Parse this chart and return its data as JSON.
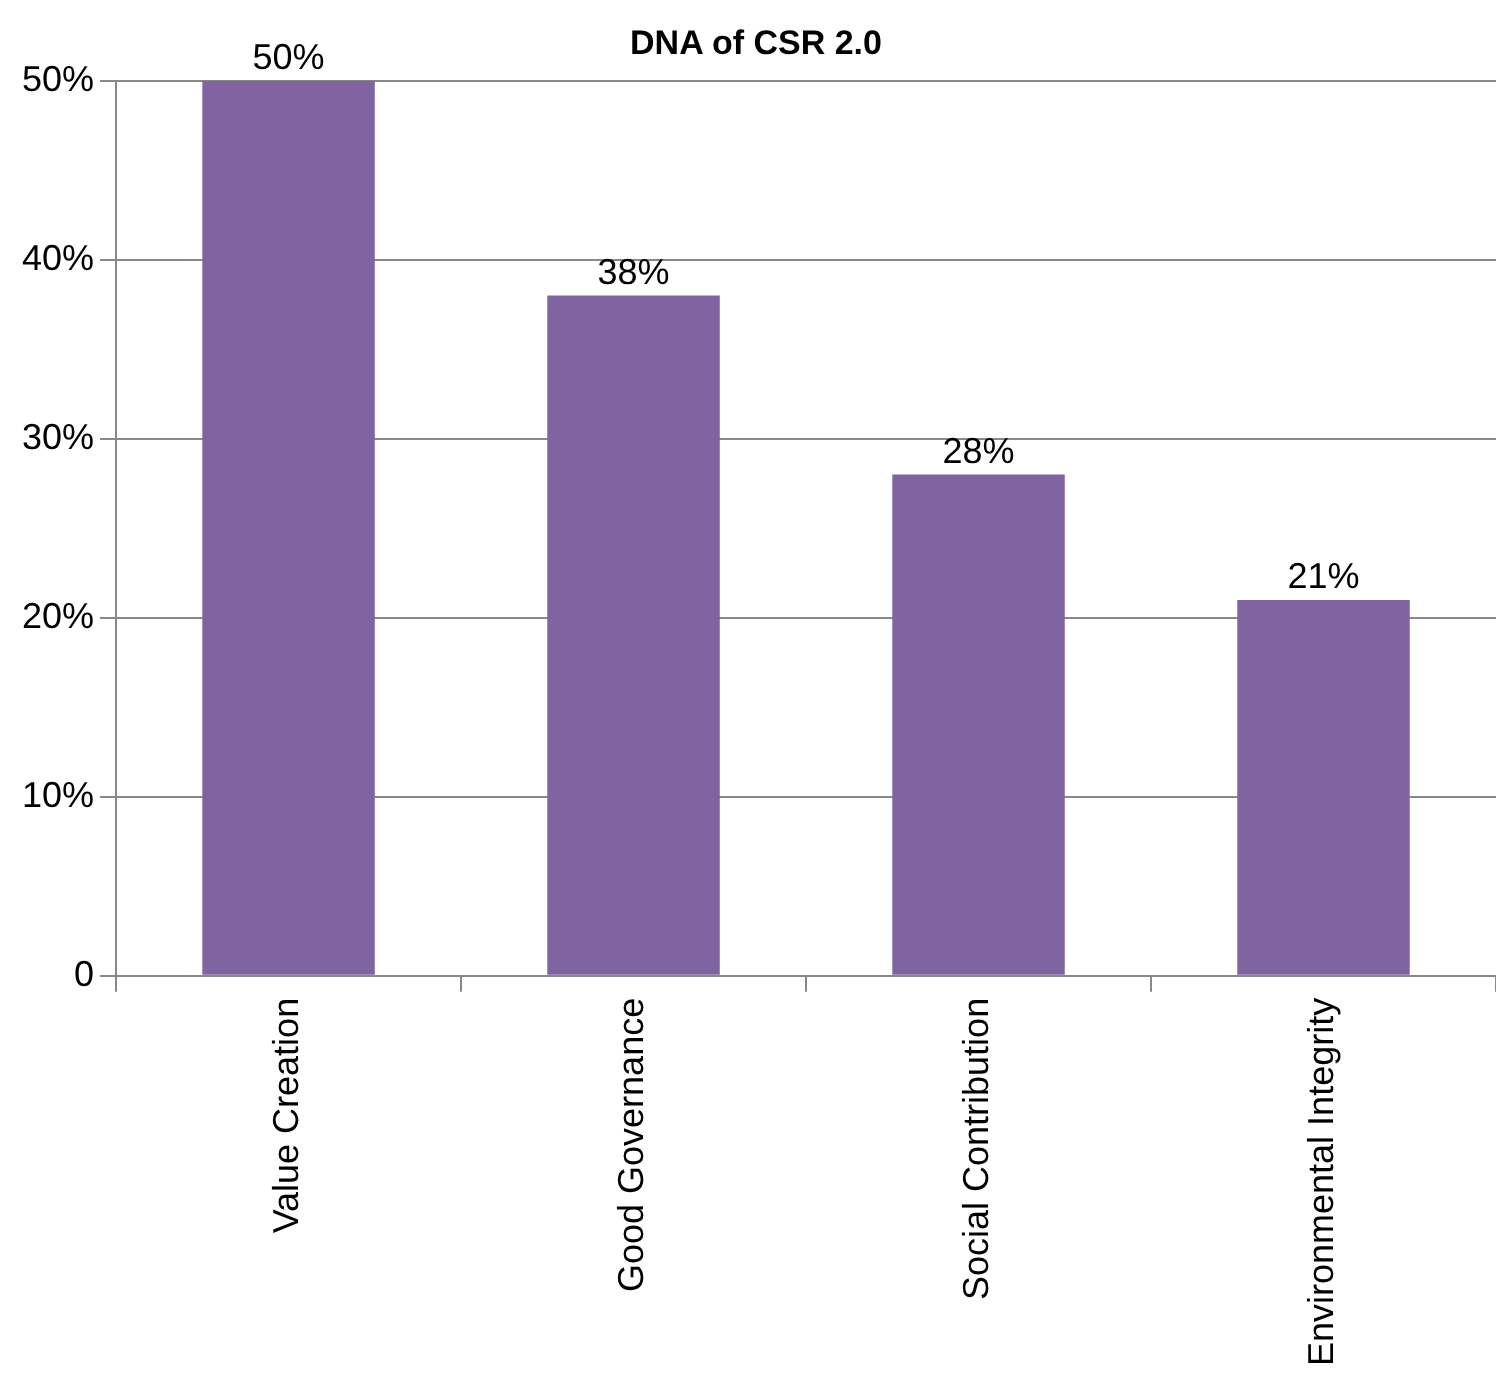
{
  "chart_data": {
    "type": "bar",
    "title": "DNA of CSR 2.0",
    "categories": [
      "Value Creation",
      "Good Governance",
      "Social Contribution",
      "Environmental Integrity"
    ],
    "values": [
      50,
      38,
      28,
      21
    ],
    "value_labels": [
      "50%",
      "38%",
      "28%",
      "21%"
    ],
    "color": "#8064a2",
    "ylim": [
      0,
      50
    ],
    "yticks": [
      0,
      {
        "value": 10,
        "label": "10%"
      },
      {
        "value": 20,
        "label": "20%"
      },
      {
        "value": 30,
        "label": "30%"
      },
      {
        "value": 40,
        "label": "40%"
      },
      {
        "value": 50,
        "label": "50%"
      }
    ],
    "grid": "y",
    "legend": false
  }
}
